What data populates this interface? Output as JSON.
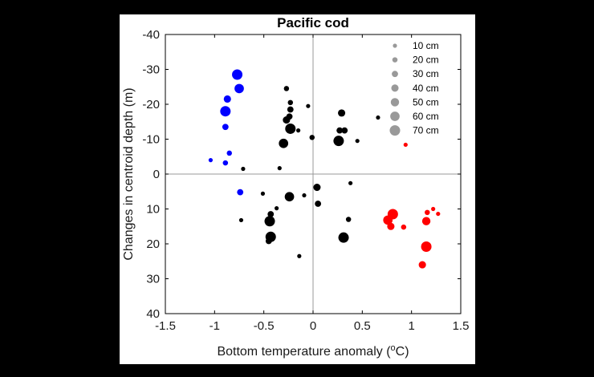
{
  "chart_data": {
    "type": "scatter",
    "title": "Pacific cod",
    "xlabel": "Bottom temperature anomaly (",
    "xlabel_unit_sup": "o",
    "xlabel_unit_rest": "C)",
    "ylabel": "Changes in centroid depth (m)",
    "xlim": [
      -1.5,
      1.5
    ],
    "ylim": [
      -40,
      40
    ],
    "y_reversed": true,
    "x_ticks": [
      -1.5,
      -1,
      -0.5,
      0,
      0.5,
      1,
      1.5
    ],
    "y_ticks": [
      -40,
      -30,
      -20,
      -10,
      0,
      10,
      20,
      30,
      40
    ],
    "x_tick_labels": [
      "-1.5",
      "-1",
      "-0.5",
      "0",
      "0.5",
      "1",
      "1.5"
    ],
    "y_tick_labels": [
      "-40",
      "-30",
      "-20",
      "-10",
      "0",
      "10",
      "20",
      "30",
      "40"
    ],
    "grid": false,
    "zero_lines": true,
    "legend_placement": "top-right",
    "legend": [
      {
        "label": "10 cm",
        "size_cm": 10
      },
      {
        "label": "20 cm",
        "size_cm": 20
      },
      {
        "label": "30 cm",
        "size_cm": 30
      },
      {
        "label": "40 cm",
        "size_cm": 40
      },
      {
        "label": "50 cm",
        "size_cm": 50
      },
      {
        "label": "60 cm",
        "size_cm": 60
      },
      {
        "label": "70 cm",
        "size_cm": 70
      }
    ],
    "colors": {
      "blue": "#0000ff",
      "black": "#000000",
      "red": "#ff0000",
      "legend": "#999999",
      "zero_line": "#999999"
    },
    "series": [
      {
        "color": "blue",
        "points": [
          {
            "x": -0.77,
            "y": -28.5,
            "size_cm": 70
          },
          {
            "x": -0.75,
            "y": -24.5,
            "size_cm": 60
          },
          {
            "x": -0.87,
            "y": -21.5,
            "size_cm": 40
          },
          {
            "x": -0.89,
            "y": -18.0,
            "size_cm": 70
          },
          {
            "x": -0.89,
            "y": -13.5,
            "size_cm": 30
          },
          {
            "x": -0.85,
            "y": -6.0,
            "size_cm": 20
          },
          {
            "x": -1.04,
            "y": -4.0,
            "size_cm": 10
          },
          {
            "x": -0.89,
            "y": -3.2,
            "size_cm": 20
          },
          {
            "x": -0.74,
            "y": 5.2,
            "size_cm": 30
          }
        ]
      },
      {
        "color": "black",
        "points": [
          {
            "x": -0.27,
            "y": -24.5,
            "size_cm": 20
          },
          {
            "x": -0.23,
            "y": -20.5,
            "size_cm": 20
          },
          {
            "x": -0.23,
            "y": -18.5,
            "size_cm": 30
          },
          {
            "x": -0.24,
            "y": -16.5,
            "size_cm": 30
          },
          {
            "x": -0.27,
            "y": -15.5,
            "size_cm": 40
          },
          {
            "x": -0.23,
            "y": -13.0,
            "size_cm": 70
          },
          {
            "x": -0.15,
            "y": -12.5,
            "size_cm": 10
          },
          {
            "x": -0.05,
            "y": -19.5,
            "size_cm": 10
          },
          {
            "x": -0.3,
            "y": -8.8,
            "size_cm": 60
          },
          {
            "x": -0.01,
            "y": -10.5,
            "size_cm": 20
          },
          {
            "x": 0.29,
            "y": -17.5,
            "size_cm": 40
          },
          {
            "x": 0.27,
            "y": -12.5,
            "size_cm": 30
          },
          {
            "x": 0.32,
            "y": -12.5,
            "size_cm": 30
          },
          {
            "x": 0.26,
            "y": -9.5,
            "size_cm": 70
          },
          {
            "x": 0.45,
            "y": -9.5,
            "size_cm": 10
          },
          {
            "x": 0.66,
            "y": -16.2,
            "size_cm": 10
          },
          {
            "x": -0.71,
            "y": -1.5,
            "size_cm": 10
          },
          {
            "x": -0.34,
            "y": -1.7,
            "size_cm": 10
          },
          {
            "x": 0.04,
            "y": 3.8,
            "size_cm": 40
          },
          {
            "x": 0.38,
            "y": 2.6,
            "size_cm": 10
          },
          {
            "x": -0.51,
            "y": 5.6,
            "size_cm": 10
          },
          {
            "x": -0.24,
            "y": 6.5,
            "size_cm": 60
          },
          {
            "x": -0.09,
            "y": 6.1,
            "size_cm": 10
          },
          {
            "x": 0.05,
            "y": 8.5,
            "size_cm": 30
          },
          {
            "x": -0.37,
            "y": 9.8,
            "size_cm": 10
          },
          {
            "x": -0.73,
            "y": 13.2,
            "size_cm": 10
          },
          {
            "x": -0.43,
            "y": 11.5,
            "size_cm": 30
          },
          {
            "x": -0.44,
            "y": 13.5,
            "size_cm": 70
          },
          {
            "x": -0.43,
            "y": 18.0,
            "size_cm": 70
          },
          {
            "x": -0.45,
            "y": 19.2,
            "size_cm": 30
          },
          {
            "x": 0.36,
            "y": 13.0,
            "size_cm": 20
          },
          {
            "x": 0.31,
            "y": 18.2,
            "size_cm": 70
          },
          {
            "x": -0.14,
            "y": 23.5,
            "size_cm": 10
          }
        ]
      },
      {
        "color": "red",
        "points": [
          {
            "x": 0.94,
            "y": -8.4,
            "size_cm": 10
          },
          {
            "x": 0.76,
            "y": 13.2,
            "size_cm": 60
          },
          {
            "x": 0.81,
            "y": 11.5,
            "size_cm": 70
          },
          {
            "x": 0.79,
            "y": 15.0,
            "size_cm": 40
          },
          {
            "x": 0.92,
            "y": 15.2,
            "size_cm": 20
          },
          {
            "x": 1.16,
            "y": 11.0,
            "size_cm": 20
          },
          {
            "x": 1.22,
            "y": 10.0,
            "size_cm": 10
          },
          {
            "x": 1.27,
            "y": 11.4,
            "size_cm": 10
          },
          {
            "x": 1.15,
            "y": 13.5,
            "size_cm": 50
          },
          {
            "x": 1.15,
            "y": 20.8,
            "size_cm": 70
          },
          {
            "x": 1.11,
            "y": 26.0,
            "size_cm": 40
          }
        ]
      }
    ]
  }
}
